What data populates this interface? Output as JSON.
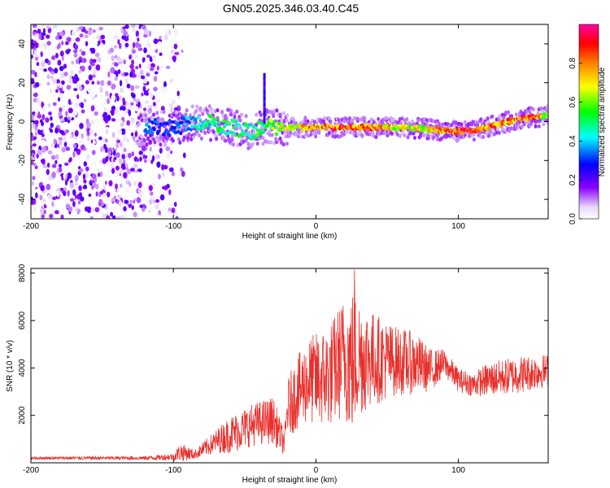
{
  "page_title": "GN05.2025.346.03.40.C45",
  "chart_data": [
    {
      "type": "heatmap",
      "xlabel": "Height of straight line (km)",
      "ylabel": "Frequency (Hz)",
      "xlim": [
        -200,
        163
      ],
      "ylim": [
        -50,
        50
      ],
      "xticks": [
        -200,
        -100,
        0,
        100
      ],
      "yticks": [
        -40,
        -20,
        0,
        20,
        40
      ],
      "xtick_labels": [
        "-200",
        "-100",
        "0",
        "100"
      ],
      "ytick_labels": [
        "-40",
        "-20",
        "0",
        "20",
        "40"
      ],
      "colorbar": {
        "label": "Normalized spectral amplitude",
        "range": [
          0.0,
          1.0
        ],
        "ticks": [
          0.0,
          0.2,
          0.4,
          0.6,
          0.8
        ],
        "tick_labels": [
          "0.0",
          "0.2",
          "0.4",
          "0.6",
          "0.8"
        ],
        "colors": [
          "#f4ecfc",
          "#8a00ff",
          "#0000ff",
          "#00ffff",
          "#00ff00",
          "#ffff00",
          "#ff8000",
          "#ff0000",
          "#ff00a0"
        ]
      },
      "noise_region_x": [
        -200,
        -90
      ],
      "ridge": {
        "x": [
          -120,
          -100,
          -80,
          -60,
          -45,
          -35,
          -20,
          0,
          20,
          40,
          60,
          80,
          100,
          110,
          120,
          130,
          140,
          150,
          163
        ],
        "y_hz": [
          -3,
          -3,
          0,
          -3,
          -5,
          -2,
          -3,
          -3,
          -3,
          -3,
          -3,
          -4,
          -5,
          -5,
          -3,
          -1,
          1,
          2,
          3
        ],
        "amplitude": [
          0.35,
          0.3,
          0.5,
          0.55,
          0.5,
          0.6,
          0.7,
          0.85,
          0.9,
          0.85,
          0.7,
          0.75,
          0.95,
          0.9,
          0.85,
          0.8,
          0.9,
          0.95,
          0.6
        ]
      },
      "grid": false
    },
    {
      "type": "line",
      "xlabel": "Height of straight line (km)",
      "ylabel": "SNR (10 * v/v)",
      "xlim": [
        -200,
        163
      ],
      "ylim": [
        0,
        8200
      ],
      "xticks": [
        -200,
        -100,
        0,
        100
      ],
      "yticks": [
        2000,
        4000,
        6000,
        8000
      ],
      "xtick_labels": [
        "-200",
        "-100",
        "0",
        "100"
      ],
      "ytick_labels": [
        "2000",
        "4000",
        "6000",
        "8000"
      ],
      "color": "#e8302c",
      "envelope": {
        "x": [
          -200,
          -120,
          -100,
          -95,
          -85,
          -70,
          -60,
          -45,
          -30,
          -22,
          -20,
          -15,
          -5,
          0,
          10,
          20,
          25,
          30,
          40,
          55,
          70,
          80,
          90,
          100,
          110,
          120,
          140,
          163
        ],
        "mean": [
          200,
          200,
          250,
          450,
          350,
          900,
          1200,
          1600,
          1800,
          800,
          2300,
          2800,
          3500,
          3500,
          3700,
          4500,
          4200,
          4500,
          4400,
          4300,
          4200,
          3900,
          4200,
          3500,
          3300,
          3500,
          3700,
          3900
        ],
        "amp": [
          60,
          80,
          150,
          400,
          200,
          500,
          800,
          900,
          1000,
          500,
          1200,
          1500,
          1800,
          2000,
          2200,
          2600,
          3200,
          2600,
          2000,
          1500,
          1300,
          900,
          600,
          500,
          500,
          700,
          800,
          700
        ]
      },
      "peak": {
        "x": 27,
        "y": 8150
      },
      "grid": false
    }
  ]
}
